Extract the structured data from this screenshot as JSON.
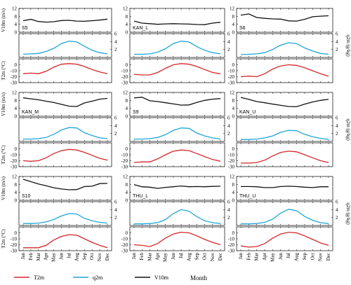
{
  "chart_data": {
    "type": "line",
    "x_label": "Month",
    "months": [
      "Jan",
      "Feb",
      "Mar",
      "Apr",
      "May",
      "Jun",
      "Jul",
      "Aug",
      "Sep",
      "Oct",
      "Nov",
      "Dec"
    ],
    "axis_labels": {
      "v10m": "V10m (m/s)",
      "q2m": "q2m (g/kg)",
      "t2m": "T2m (°C)"
    },
    "ranges": {
      "v10m": [
        0,
        12
      ],
      "q2m": [
        0,
        6
      ],
      "t2m": [
        -30,
        10
      ]
    },
    "v10m_ticks": [
      "0",
      "4",
      "8",
      "12"
    ],
    "q2m_ticks": [
      "2",
      "4",
      "6"
    ],
    "t2m_ticks": [
      "-30",
      "-20",
      "-10",
      "0"
    ],
    "legend": [
      {
        "name": "T2m",
        "color": "#d62728"
      },
      {
        "name": "q2m",
        "color": "#1fa6d6"
      },
      {
        "name": "V10m",
        "color": "#111111"
      }
    ],
    "stations": [
      {
        "name": "S5",
        "v10m": [
          5.8,
          6.5,
          5.4,
          5.1,
          5.3,
          5.9,
          6.0,
          5.6,
          5.5,
          5.8,
          6.1,
          6.6
        ],
        "q2m": [
          0.8,
          0.9,
          1.0,
          1.5,
          2.3,
          3.5,
          4.1,
          3.9,
          2.8,
          1.8,
          1.2,
          0.9
        ],
        "t2m": [
          -15,
          -14,
          -15,
          -11,
          -4,
          1,
          2,
          1,
          -3,
          -8,
          -12,
          -15
        ]
      },
      {
        "name": "KAN_L",
        "v10m": [
          5.6,
          4.6,
          4.3,
          4.0,
          4.2,
          4.3,
          4.2,
          4.1,
          3.9,
          3.8,
          4.6,
          5.0
        ],
        "q2m": [
          0.8,
          0.8,
          0.9,
          1.3,
          2.2,
          3.5,
          4.1,
          3.9,
          2.7,
          1.8,
          1.2,
          0.9
        ],
        "t2m": [
          -16,
          -17,
          -17,
          -13,
          -6,
          0,
          2,
          1,
          -3,
          -8,
          -13,
          -15
        ]
      },
      {
        "name": "S6",
        "v10m": [
          8.6,
          9.2,
          7.4,
          7.0,
          6.7,
          6.6,
          5.7,
          5.6,
          6.5,
          7.8,
          8.1,
          8.3
        ],
        "q2m": [
          0.7,
          0.8,
          0.9,
          1.2,
          2.0,
          3.1,
          3.7,
          3.5,
          2.4,
          1.6,
          1.0,
          0.8
        ],
        "t2m": [
          -20,
          -19,
          -20,
          -15,
          -7,
          -2,
          0,
          -1,
          -5,
          -10,
          -15,
          -19
        ]
      },
      {
        "name": "KAN_M",
        "v10m": [
          9.3,
          8.8,
          8.3,
          7.6,
          6.9,
          6.0,
          5.1,
          4.9,
          6.7,
          7.6,
          8.6,
          9.0
        ],
        "q2m": [
          0.6,
          0.6,
          0.7,
          1.0,
          1.8,
          2.9,
          3.5,
          3.4,
          2.2,
          1.5,
          0.9,
          0.7
        ],
        "t2m": [
          -20,
          -21,
          -20,
          -15,
          -8,
          -3,
          -1,
          -2,
          -6,
          -11,
          -16,
          -19
        ]
      },
      {
        "name": "S9",
        "v10m": [
          9.2,
          9.6,
          7.8,
          7.4,
          6.8,
          6.2,
          5.6,
          5.7,
          7.0,
          8.0,
          8.6,
          8.9
        ],
        "q2m": [
          0.6,
          0.6,
          0.7,
          1.0,
          1.7,
          2.8,
          3.4,
          3.3,
          2.1,
          1.4,
          0.9,
          0.6
        ],
        "t2m": [
          -23,
          -22,
          -22,
          -17,
          -10,
          -4,
          -2,
          -3,
          -8,
          -13,
          -18,
          -21
        ]
      },
      {
        "name": "KAN_U",
        "v10m": [
          9.5,
          8.5,
          7.4,
          6.8,
          6.1,
          5.5,
          4.9,
          4.8,
          6.1,
          7.2,
          8.0,
          8.5
        ],
        "q2m": [
          0.5,
          0.5,
          0.6,
          0.9,
          1.4,
          2.3,
          2.8,
          2.7,
          1.8,
          1.2,
          0.8,
          0.5
        ],
        "t2m": [
          -24,
          -24,
          -23,
          -19,
          -12,
          -6,
          -4,
          -5,
          -10,
          -15,
          -20,
          -23
        ]
      },
      {
        "name": "S10",
        "v10m": [
          10.6,
          9.4,
          8.2,
          7.3,
          6.3,
          5.7,
          5.3,
          5.4,
          6.9,
          7.1,
          8.4,
          8.5
        ],
        "q2m": [
          0.5,
          0.5,
          0.6,
          0.9,
          1.5,
          2.4,
          3.0,
          2.9,
          1.8,
          1.2,
          0.8,
          0.6
        ],
        "t2m": [
          -25,
          -25,
          -25,
          -21,
          -12,
          -6,
          -3,
          -4,
          -10,
          -16,
          -21,
          -25
        ]
      },
      {
        "name": "THU_L",
        "v10m": [
          7.9,
          6.8,
          6.6,
          6.0,
          6.5,
          6.8,
          7.2,
          6.8,
          6.9,
          6.8,
          7.0,
          7.1
        ],
        "q2m": [
          0.4,
          0.4,
          0.5,
          0.7,
          1.5,
          3.0,
          4.0,
          3.6,
          2.2,
          1.2,
          0.7,
          0.5
        ],
        "t2m": [
          -20,
          -21,
          -23,
          -18,
          -9,
          -2,
          1,
          0,
          -5,
          -11,
          -16,
          -20
        ]
      },
      {
        "name": "THU_U",
        "v10m": [
          6.9,
          6.9,
          6.8,
          6.4,
          6.4,
          6.9,
          7.1,
          6.9,
          6.6,
          6.4,
          6.8,
          6.8
        ],
        "q2m": [
          0.4,
          0.4,
          0.5,
          0.8,
          1.6,
          3.1,
          4.1,
          3.7,
          2.3,
          1.3,
          0.7,
          0.5
        ],
        "t2m": [
          -22,
          -24,
          -23,
          -18,
          -9,
          -2,
          1,
          0,
          -5,
          -11,
          -17,
          -21
        ]
      }
    ]
  }
}
